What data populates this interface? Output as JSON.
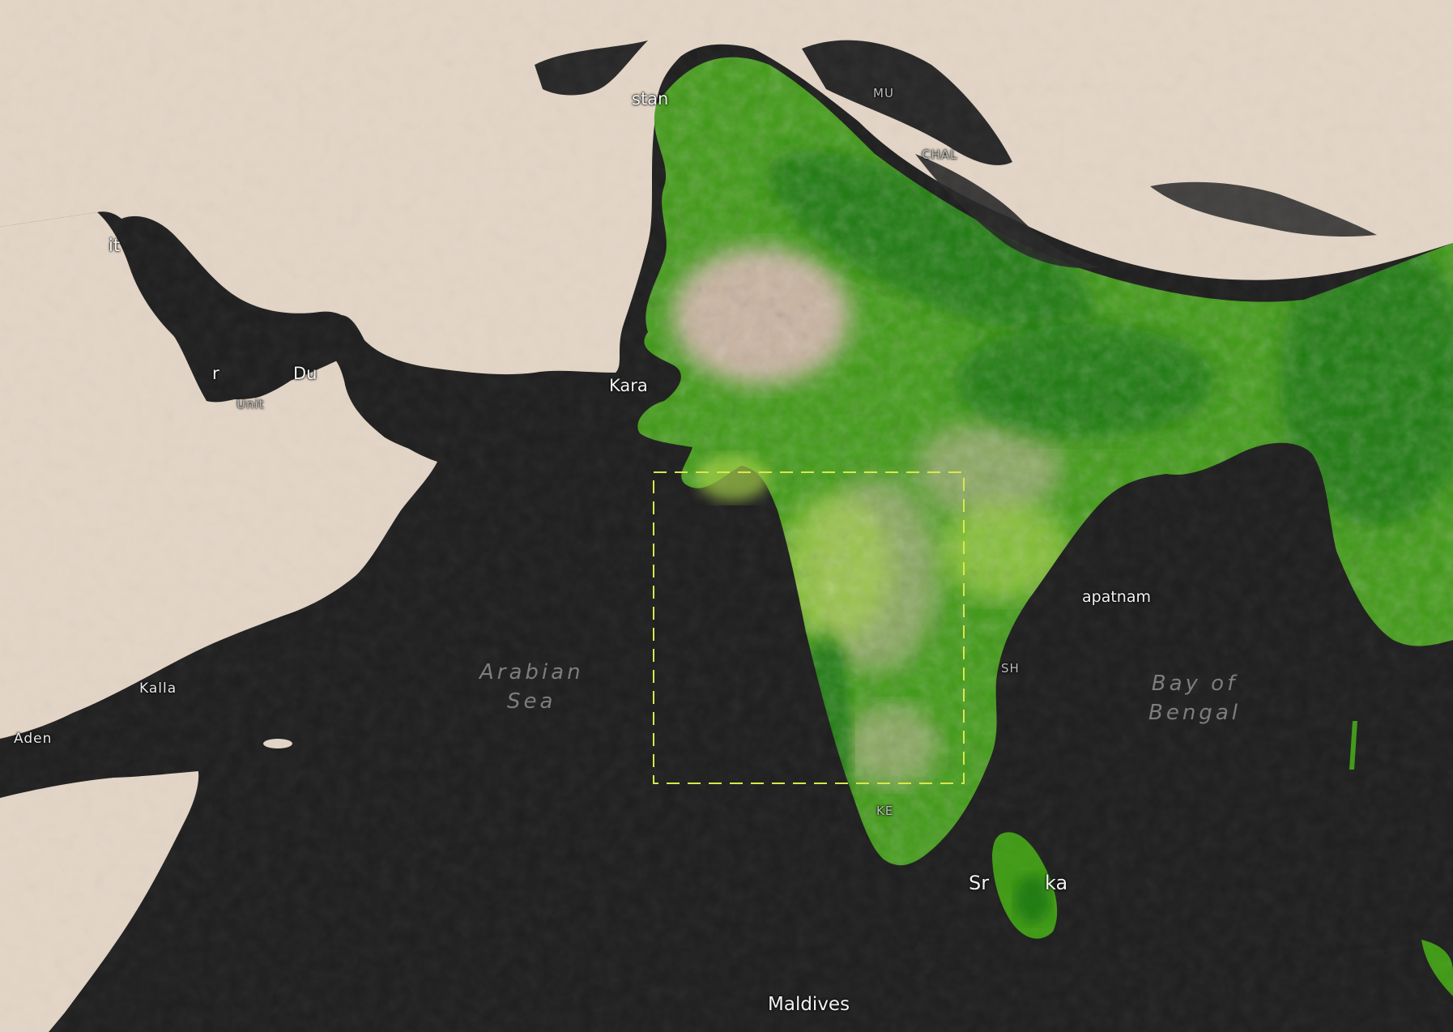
{
  "map": {
    "colors": {
      "water": "#1e1e1e",
      "desert": "#e3d5c6",
      "desert_dark": "#c9b4a0",
      "vegetation": "#3f9a14",
      "vegetation_dense": "#1f7a08",
      "vegetation_light": "#a3cf45",
      "snow_dark": "#262626",
      "selection_box": "#d8e84a"
    },
    "labels": {
      "pakistan_partial": "stan",
      "kuwait_partial": "it",
      "doha_partial": "r",
      "dubai_partial": "Du",
      "uae_partial": "Unit",
      "karachi_partial": "Kara",
      "ghazni_partial": "CHAL",
      "jammu_partial": "MU",
      "arabian_sea_line1": "Arabian",
      "arabian_sea_line2": "Sea",
      "bay_line1": "Bay of",
      "bay_line2": "Bengal",
      "mukalla_partial": "Kalla",
      "aden": "Aden",
      "visakhapatnam_partial": "apatnam",
      "andhra_partial": "SH",
      "kerala_partial": "KE",
      "sri_lanka_left": "Sr",
      "sri_lanka_right": "ka",
      "maldives": "Maldives"
    }
  }
}
